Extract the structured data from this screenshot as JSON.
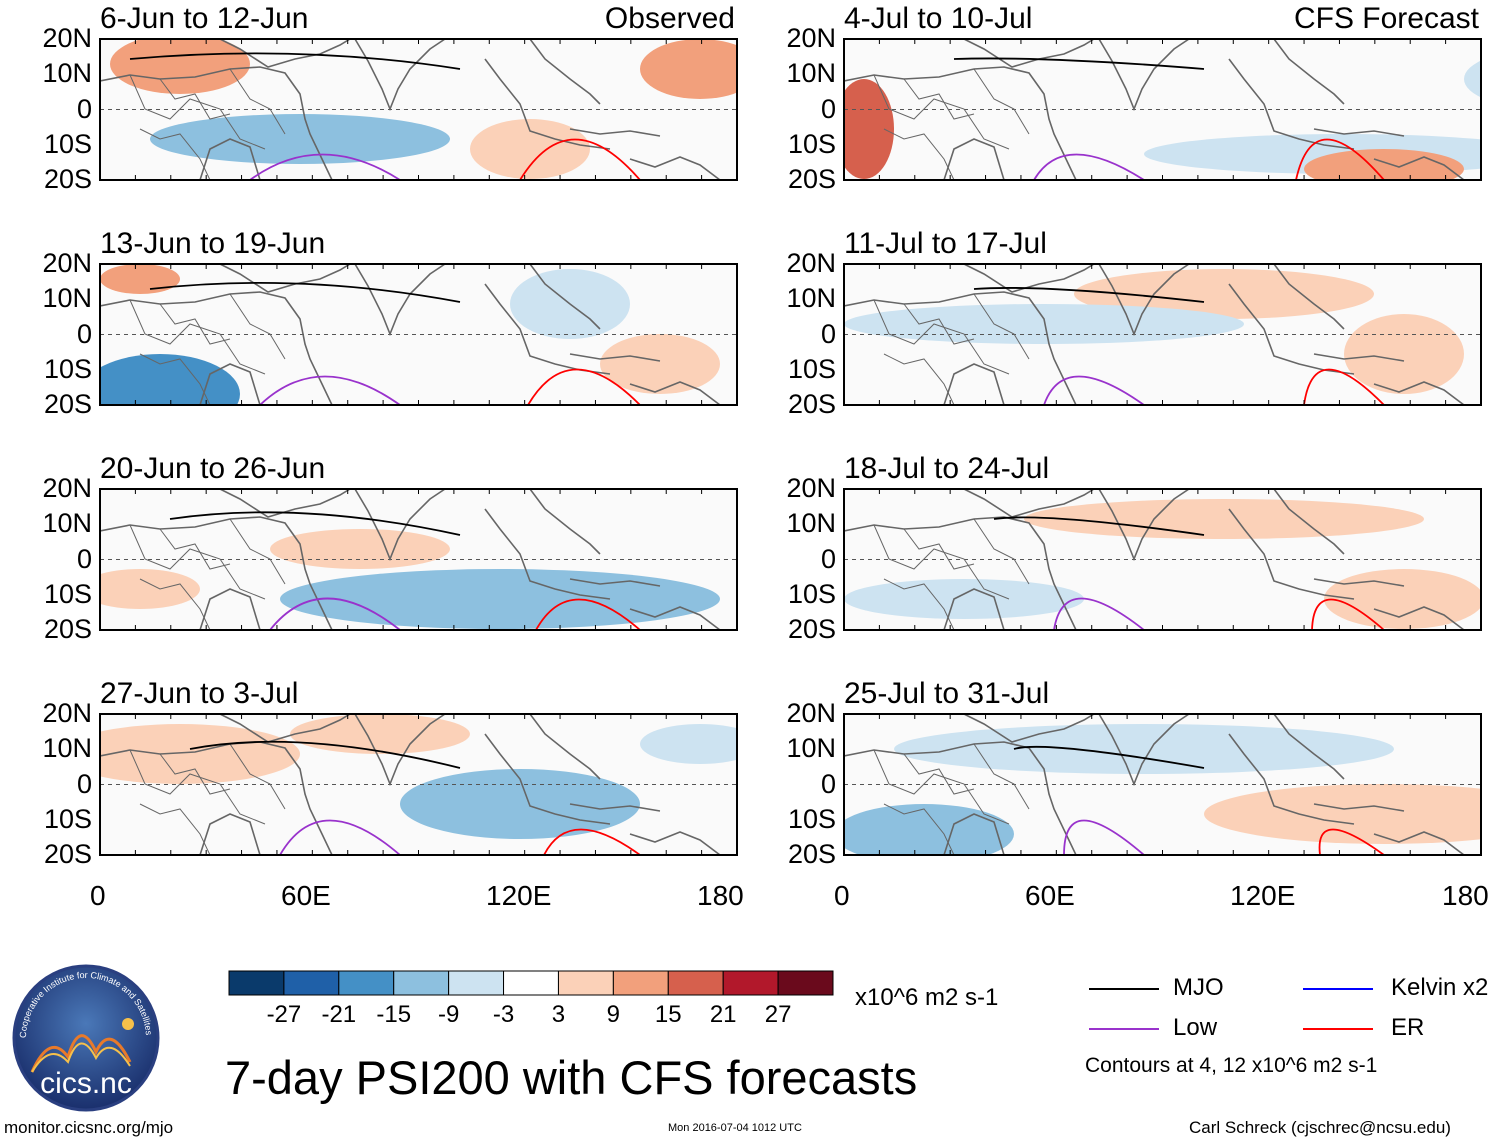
{
  "figure_title": "7-day PSI200 with CFS forecasts",
  "panel_tags": {
    "observed": "Observed",
    "forecast": "CFS Forecast"
  },
  "observed_panels": [
    {
      "title": "6-Jun to 12-Jun"
    },
    {
      "title": "13-Jun to 19-Jun"
    },
    {
      "title": "20-Jun to 26-Jun"
    },
    {
      "title": "27-Jun to 3-Jul"
    }
  ],
  "forecast_panels": [
    {
      "title": "4-Jul to 10-Jul"
    },
    {
      "title": "11-Jul to 17-Jul"
    },
    {
      "title": "18-Jul to 24-Jul"
    },
    {
      "title": "25-Jul to 31-Jul"
    }
  ],
  "lat_labels": [
    "20N",
    "10N",
    "0",
    "10S",
    "20S"
  ],
  "lon_labels": [
    "0",
    "60E",
    "120E",
    "180"
  ],
  "colorbar": {
    "ticks": [
      "-27",
      "-21",
      "-15",
      "-9",
      "-3",
      "3",
      "9",
      "15",
      "21",
      "27"
    ],
    "units": "x10^6 m2 s-1",
    "colors": [
      "#0a3a6b",
      "#1f60a8",
      "#4490c6",
      "#8dc0df",
      "#cde3f1",
      "#ffffff",
      "#fbd1b8",
      "#f2a07c",
      "#d6604d",
      "#b2182b",
      "#6a0a1c"
    ]
  },
  "legend": {
    "items": [
      {
        "label": "MJO",
        "color": "#000000"
      },
      {
        "label": "Kelvin x2",
        "color": "#0000ff"
      },
      {
        "label": "Low",
        "color": "#9932cc"
      },
      {
        "label": "ER",
        "color": "#ff0000"
      }
    ],
    "contour_note": "Contours at 4, 12 x10^6 m2 s-1"
  },
  "logo_text": "cics.nc",
  "logo_ring_text": "Cooperative Institute for Climate and Satellites",
  "footer": {
    "url": "monitor.cicsnc.org/mjo",
    "timestamp": "Mon 2016-07-04 1012 UTC",
    "author": "Carl Schreck (cjschrec@ncsu.edu)"
  }
}
